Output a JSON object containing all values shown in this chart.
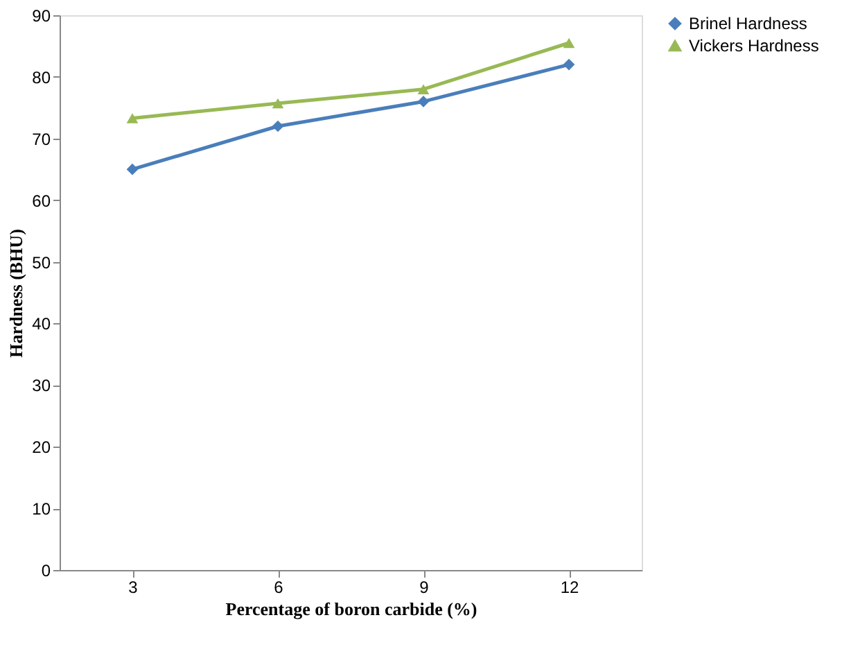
{
  "chart_data": {
    "type": "line",
    "xlabel": "Percentage of boron carbide (%)",
    "ylabel": "Hardness  (BHU)",
    "categories": [
      "3",
      "6",
      "9",
      "12"
    ],
    "series": [
      {
        "name": "Brinel Hardness",
        "color": "#4a7ebb",
        "marker": "diamond",
        "values": [
          65,
          72,
          76,
          82
        ]
      },
      {
        "name": "Vickers Hardness",
        "color": "#98b954",
        "marker": "triangle",
        "values": [
          73.3,
          75.7,
          78,
          85.5
        ]
      }
    ],
    "ylim": [
      0,
      90
    ],
    "yticks": [
      0,
      10,
      20,
      30,
      40,
      50,
      60,
      70,
      80,
      90
    ],
    "grid": false,
    "legend": "right"
  }
}
